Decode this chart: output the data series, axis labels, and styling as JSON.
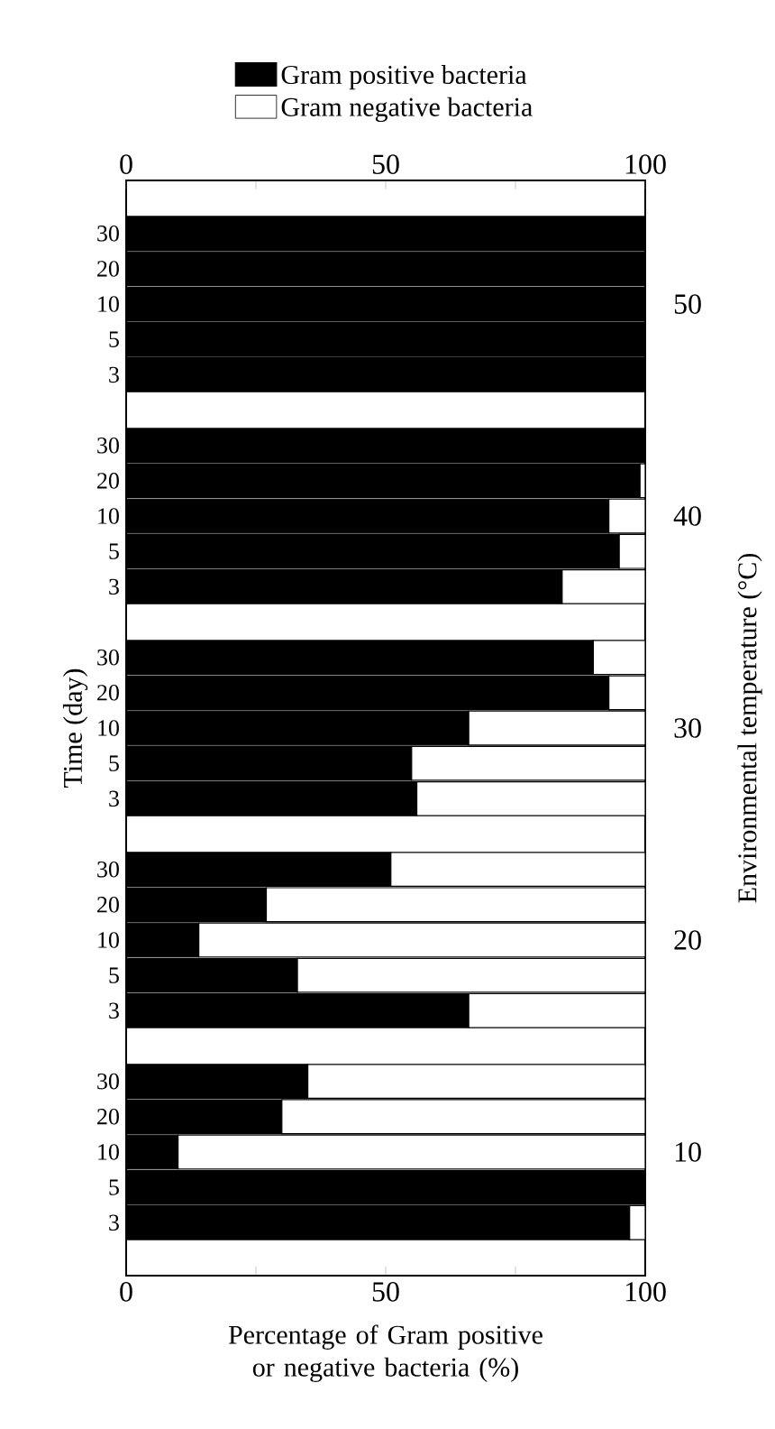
{
  "chart_data": {
    "type": "bar",
    "orientation": "horizontal",
    "stacked": true,
    "ylabel": "Time (day)",
    "y2label": "Environmental temperature (°C)",
    "xlabel": "Percentage of Gram positive or negative bacteria (%)",
    "categories": [
      null,
      "30",
      "20",
      "10",
      "5",
      "3",
      null,
      "30",
      "20",
      "10",
      "5",
      "3",
      null,
      "30",
      "20",
      "10",
      "5",
      "3",
      null,
      "30",
      "20",
      "10",
      "5",
      "3",
      null,
      "30",
      "20",
      "10",
      "5",
      "3",
      null
    ],
    "series": [
      {
        "name": "Gram positive bacteria",
        "color": "#000000",
        "values": [
          null,
          100,
          100,
          100,
          100,
          100,
          null,
          100,
          99,
          93,
          95,
          84,
          null,
          90,
          93,
          66,
          55,
          56,
          null,
          51,
          27,
          14,
          33,
          66,
          null,
          35,
          30,
          10,
          100,
          97,
          null
        ]
      },
      {
        "name": "Gram negative bacteria",
        "color": "#ffffff",
        "values": [
          null,
          null,
          null,
          null,
          null,
          null,
          null,
          null,
          1,
          7,
          5,
          16,
          null,
          10,
          7,
          34,
          45,
          44,
          null,
          49,
          73,
          86,
          67,
          34,
          null,
          65,
          70,
          90,
          null,
          3,
          null
        ]
      }
    ],
    "xlim": [
      0,
      100
    ],
    "xticks": [
      0,
      {
        "value": 25,
        "label": null
      },
      50,
      {
        "value": 75,
        "label": null
      },
      100
    ],
    "x2lim": [
      0,
      100
    ],
    "x2ticks": [
      0,
      {
        "value": 25,
        "label": null
      },
      50,
      {
        "value": 75,
        "label": null
      },
      100
    ],
    "annotations": [
      "50",
      "40",
      "30",
      "20",
      "10"
    ],
    "legend": "top"
  }
}
